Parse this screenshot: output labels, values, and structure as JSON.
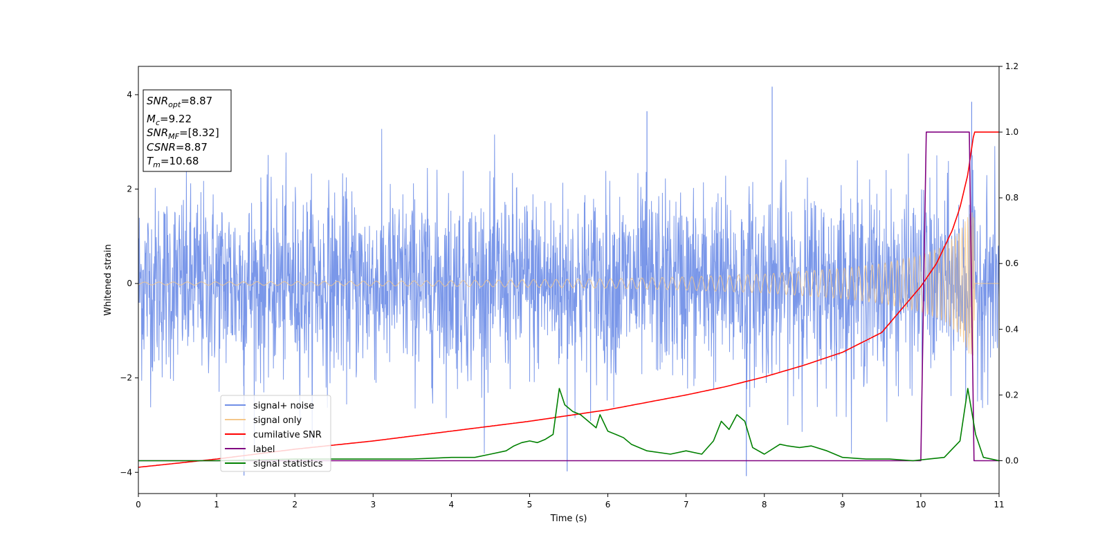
{
  "chart_data": {
    "type": "line",
    "xlabel": "Time (s)",
    "ylabel": "Whitened strain",
    "xlim": [
      0,
      11
    ],
    "ylim_left": [
      -4.45,
      4.6
    ],
    "ylim_right": [
      -0.1,
      1.2
    ],
    "x_ticks": [
      "0",
      "1",
      "2",
      "3",
      "4",
      "5",
      "6",
      "7",
      "8",
      "9",
      "10",
      "11"
    ],
    "y_ticks_left": [
      "4",
      "2",
      "0",
      "−2",
      "−4"
    ],
    "y_ticks_right": [
      "1.2",
      "1.0",
      "0.8",
      "0.6",
      "0.4",
      "0.2",
      "0.0"
    ],
    "annotation": {
      "lines": [
        {
          "main": "SNR",
          "sub": "opt",
          "value": "=8.87"
        },
        {
          "main": "M",
          "sub": "c",
          "value": "=9.22"
        },
        {
          "main": "SNR",
          "sub": "MF",
          "value": "=[8.32]"
        },
        {
          "main": "CSNR",
          "sub": "",
          "value": "=8.87"
        },
        {
          "main": "T",
          "sub": "m",
          "value": "=10.68"
        }
      ]
    },
    "legend": {
      "position": "lower-left",
      "entries": [
        {
          "label": "signal+ noise",
          "color": "#6f8ee6"
        },
        {
          "label": "signal only",
          "color": "#f5c78a"
        },
        {
          "label": "cumilative SNR",
          "color": "#ff0000"
        },
        {
          "label": "label",
          "color": "#800080"
        },
        {
          "label": "signal statistics",
          "color": "#008000"
        }
      ]
    },
    "series": [
      {
        "name": "signal+ noise",
        "axis": "left",
        "color": "#7391e8",
        "noise_std": 1.0,
        "typical_range": [
          -3.0,
          3.0
        ],
        "extremes": [
          {
            "x": 8.1,
            "y": 4.17
          },
          {
            "x": 1.35,
            "y": -4.07
          },
          {
            "x": 5.48,
            "y": -3.98
          },
          {
            "x": 7.77,
            "y": -4.08
          },
          {
            "x": 10.65,
            "y": 3.85
          },
          {
            "x": 6.5,
            "y": 3.65
          }
        ]
      },
      {
        "name": "signal only",
        "axis": "left",
        "color": "#f5c78a",
        "envelope": [
          [
            0,
            0.03
          ],
          [
            2,
            0.04
          ],
          [
            4,
            0.06
          ],
          [
            6,
            0.1
          ],
          [
            7,
            0.14
          ],
          [
            8,
            0.2
          ],
          [
            9,
            0.32
          ],
          [
            9.5,
            0.42
          ],
          [
            10,
            0.6
          ],
          [
            10.3,
            0.8
          ],
          [
            10.5,
            1.1
          ],
          [
            10.62,
            1.5
          ],
          [
            10.68,
            1.55
          ],
          [
            10.69,
            0.0
          ],
          [
            11,
            0.0
          ]
        ]
      },
      {
        "name": "cumilative SNR",
        "axis": "right",
        "color": "#ff0000",
        "x": [
          0,
          1,
          2,
          3,
          4,
          5,
          6,
          7,
          7.5,
          8,
          8.5,
          9,
          9.5,
          10,
          10.2,
          10.4,
          10.5,
          10.6,
          10.68,
          10.7,
          11
        ],
        "y": [
          -0.02,
          0.005,
          0.035,
          0.06,
          0.09,
          0.12,
          0.155,
          0.2,
          0.225,
          0.255,
          0.29,
          0.33,
          0.39,
          0.53,
          0.6,
          0.7,
          0.77,
          0.87,
          1.0,
          1.0,
          1.0
        ]
      },
      {
        "name": "label",
        "axis": "right",
        "color": "#800080",
        "x": [
          0,
          10.0,
          10.07,
          10.62,
          10.68,
          11
        ],
        "y": [
          0,
          0,
          1,
          1,
          0,
          0
        ]
      },
      {
        "name": "signal statistics",
        "axis": "right",
        "color": "#008000",
        "x": [
          0,
          1,
          2,
          2.5,
          3,
          3.5,
          4,
          4.3,
          4.5,
          4.7,
          4.8,
          4.9,
          5.0,
          5.1,
          5.2,
          5.3,
          5.38,
          5.45,
          5.55,
          5.65,
          5.75,
          5.85,
          5.9,
          6.0,
          6.1,
          6.2,
          6.3,
          6.5,
          6.8,
          7.0,
          7.2,
          7.35,
          7.45,
          7.55,
          7.65,
          7.75,
          7.85,
          8.0,
          8.2,
          8.3,
          8.45,
          8.6,
          8.8,
          9.0,
          9.3,
          9.6,
          9.9,
          10.1,
          10.3,
          10.4,
          10.5,
          10.6,
          10.7,
          10.8,
          11
        ],
        "y": [
          0,
          0.0,
          0.005,
          0.005,
          0.005,
          0.005,
          0.01,
          0.01,
          0.02,
          0.03,
          0.045,
          0.055,
          0.06,
          0.055,
          0.065,
          0.08,
          0.22,
          0.17,
          0.15,
          0.14,
          0.12,
          0.1,
          0.14,
          0.09,
          0.08,
          0.07,
          0.05,
          0.03,
          0.02,
          0.03,
          0.02,
          0.06,
          0.12,
          0.095,
          0.14,
          0.12,
          0.04,
          0.02,
          0.05,
          0.045,
          0.04,
          0.045,
          0.03,
          0.01,
          0.005,
          0.005,
          0.0,
          0.005,
          0.01,
          0.035,
          0.06,
          0.22,
          0.08,
          0.01,
          0.0
        ]
      }
    ]
  }
}
